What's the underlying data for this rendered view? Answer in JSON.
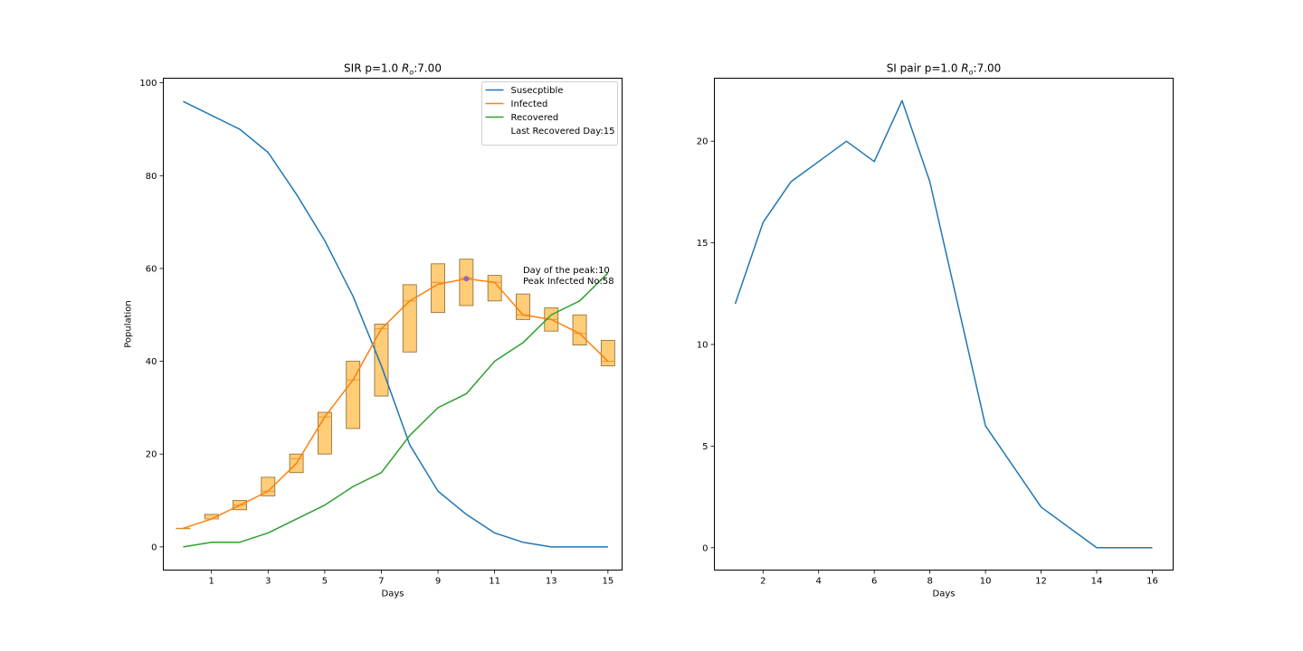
{
  "chart_data": [
    {
      "type": "line",
      "title": "SIR p=1.0",
      "title_r0_label": "R",
      "title_r0_subscript": "o",
      "title_r0_value": ":7.00",
      "xlabel": "Days",
      "ylabel": "Population",
      "xlim": [
        -0.7,
        15.5
      ],
      "ylim": [
        -5,
        101
      ],
      "xticks": [
        1,
        3,
        5,
        7,
        9,
        11,
        13,
        15
      ],
      "yticks": [
        0,
        20,
        40,
        60,
        80,
        100
      ],
      "x": [
        0,
        1,
        2,
        3,
        4,
        5,
        6,
        7,
        8,
        9,
        10,
        11,
        12,
        13,
        14,
        15
      ],
      "series": [
        {
          "name": "Susecptible",
          "color": "#1f77b4",
          "values": [
            96,
            93,
            90,
            85,
            76,
            66,
            54,
            39,
            22,
            12,
            7,
            3,
            1,
            0,
            0,
            0
          ]
        },
        {
          "name": "Infected",
          "color": "#ff7f0e",
          "values": [
            4,
            6,
            9,
            12,
            18,
            28,
            36,
            47,
            53,
            56.6,
            57.8,
            57,
            50,
            49,
            46,
            40
          ]
        },
        {
          "name": "Recovered",
          "color": "#2ca02c",
          "values": [
            0,
            1,
            1,
            3,
            6,
            9,
            13,
            16,
            24,
            30,
            33,
            40,
            44,
            50,
            53,
            59
          ]
        }
      ],
      "infected_ranges": {
        "fill": "#ffcc77",
        "edge": "#8a6a30",
        "boxes": [
          {
            "x": 0,
            "low": 4,
            "high": 4,
            "median": 4
          },
          {
            "x": 1,
            "low": 6,
            "high": 7,
            "median": 6
          },
          {
            "x": 2,
            "low": 8,
            "high": 10,
            "median": 9
          },
          {
            "x": 3,
            "low": 11,
            "high": 15,
            "median": 12
          },
          {
            "x": 4,
            "low": 16,
            "high": 20,
            "median": 19
          },
          {
            "x": 5,
            "low": 20,
            "high": 29,
            "median": 28
          },
          {
            "x": 6,
            "low": 25.5,
            "high": 40,
            "median": 36
          },
          {
            "x": 7,
            "low": 32.5,
            "high": 48,
            "median": 47
          },
          {
            "x": 8,
            "low": 42,
            "high": 56.5,
            "median": 53
          },
          {
            "x": 9,
            "low": 50.5,
            "high": 61,
            "median": 57
          },
          {
            "x": 10,
            "low": 52,
            "high": 62,
            "median": 58
          },
          {
            "x": 11,
            "low": 53,
            "high": 58.5,
            "median": 57
          },
          {
            "x": 12,
            "low": 49,
            "high": 54.5,
            "median": 50
          },
          {
            "x": 13,
            "low": 46.5,
            "high": 51.5,
            "median": 49
          },
          {
            "x": 14,
            "low": 43.5,
            "high": 50,
            "median": 46
          },
          {
            "x": 15,
            "low": 39,
            "high": 44.5,
            "median": 40
          }
        ]
      },
      "peak_marker": {
        "x": 10,
        "y": 57.8,
        "color": "#9467bd"
      },
      "annotation_lines": [
        "Day of the peak:10",
        "Peak Infected No:58"
      ],
      "annotation_anchor": {
        "x": 12,
        "y": 59
      },
      "legend_extra": "Last Recovered Day:15",
      "legend_position": "top-right",
      "grid": false
    },
    {
      "type": "line",
      "title": "SI pair p=1.0",
      "title_r0_label": "R",
      "title_r0_subscript": "o",
      "title_r0_value": ":7.00",
      "xlabel": "Days",
      "ylabel": "",
      "xlim": [
        0.25,
        16.75
      ],
      "ylim": [
        -1.1,
        23.1
      ],
      "xticks": [
        2,
        4,
        6,
        8,
        10,
        12,
        14,
        16
      ],
      "yticks": [
        0,
        5,
        10,
        15,
        20
      ],
      "x": [
        1,
        2,
        3,
        4,
        5,
        6,
        7,
        8,
        10,
        12,
        14,
        16
      ],
      "series": [
        {
          "name": "",
          "color": "#1f77b4",
          "values": [
            12,
            16,
            18,
            19,
            20,
            19,
            22,
            18,
            6,
            2,
            0,
            0
          ]
        }
      ],
      "grid": false
    }
  ]
}
